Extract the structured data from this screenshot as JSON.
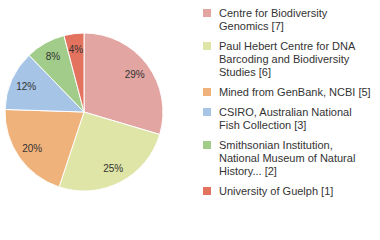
{
  "chart_data": {
    "type": "pie",
    "categories": [
      "Centre for Biodiversity Genomics [7]",
      "Paul Hebert Centre for DNA Barcoding and Biodiversity Studies [6]",
      "Mined from GenBank, NCBI [5]",
      "CSIRO, Australian National Fish Collection [3]",
      "Smithsonian Institution, National Museum of Natural History... [2]",
      "University of Guelph [1]"
    ],
    "values": [
      29,
      25,
      20,
      12,
      8,
      4
    ],
    "value_labels": [
      "29%",
      "25%",
      "20%",
      "12%",
      "8%",
      "4%"
    ],
    "colors": [
      "#e2a5a1",
      "#dfe5a6",
      "#f0b27b",
      "#a6c4e6",
      "#a2cc8a",
      "#e3725f"
    ],
    "data_labels": true,
    "legend": "right"
  }
}
